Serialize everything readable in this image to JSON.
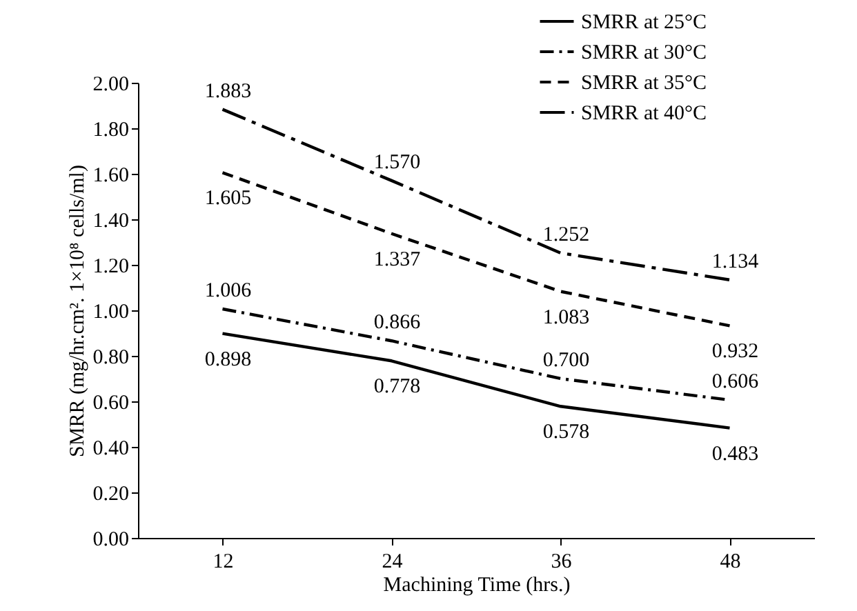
{
  "chart_data": {
    "type": "line",
    "xlabel": "Machining Time (hrs.)",
    "ylabel": "SMRR (mg/hr.cm². 1×10⁸ cells/ml)",
    "categories": [
      "12",
      "24",
      "36",
      "48"
    ],
    "series": [
      {
        "name": "SMRR at 25°C",
        "color": "#000000",
        "line_style": "solid",
        "values": [
          0.898,
          0.778,
          0.578,
          0.483
        ]
      },
      {
        "name": "SMRR at 30°C",
        "color": "#000000",
        "line_style": "dashdot",
        "values": [
          1.006,
          0.866,
          0.7,
          0.606
        ]
      },
      {
        "name": "SMRR at 35°C",
        "color": "#000000",
        "line_style": "dashed",
        "values": [
          1.605,
          1.337,
          1.083,
          0.932
        ]
      },
      {
        "name": "SMRR at 40°C",
        "color": "#000000",
        "line_style": "longdashdot",
        "values": [
          1.883,
          1.57,
          1.252,
          1.134
        ]
      }
    ],
    "ylim": [
      0,
      2
    ],
    "yticks": [
      {
        "value": 0,
        "label": "0.00"
      },
      {
        "value": 0.2,
        "label": "0.20"
      },
      {
        "value": 0.4,
        "label": "0.40"
      },
      {
        "value": 0.6,
        "label": "0.60"
      },
      {
        "value": 0.8,
        "label": "0.80"
      },
      {
        "value": 1,
        "label": "1.00"
      },
      {
        "value": 1.2,
        "label": "1.20"
      },
      {
        "value": 1.4,
        "label": "1.40"
      },
      {
        "value": 1.6,
        "label": "1.60"
      },
      {
        "value": 1.8,
        "label": "1.80"
      },
      {
        "value": 2,
        "label": "2.00"
      }
    ],
    "value_labels": [
      [
        "0.898",
        "0.778",
        "0.578",
        "0.483"
      ],
      [
        "1.006",
        "0.866",
        "0.700",
        "0.606"
      ],
      [
        "1.605",
        "1.337",
        "1.083",
        "0.932"
      ],
      [
        "1.883",
        "1.570",
        "1.252",
        "1.134"
      ]
    ],
    "grid": false,
    "legend": "top right",
    "marker": "none"
  }
}
